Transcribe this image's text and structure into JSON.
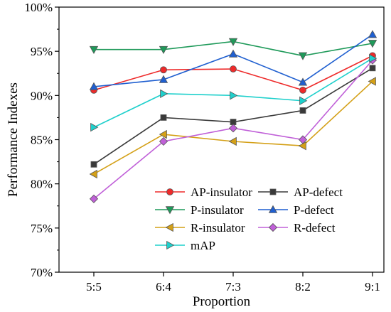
{
  "chart_data": {
    "type": "line",
    "categories": [
      "5:5",
      "6:4",
      "7:3",
      "8:2",
      "9:1"
    ],
    "xlabel": "Proportion",
    "ylabel": "Performance Indexes",
    "ylim": [
      70,
      100
    ],
    "yticks": [
      70,
      75,
      80,
      85,
      90,
      95,
      100
    ],
    "ytick_labels": [
      "70%",
      "75%",
      "80%",
      "85%",
      "90%",
      "95%",
      "100%"
    ],
    "grid": false,
    "legend_position": "bottom-right",
    "series": [
      {
        "name": "AP-insulator",
        "color": "#ee2a2a",
        "marker": "circle",
        "values": [
          90.6,
          92.9,
          93.0,
          90.6,
          94.5
        ]
      },
      {
        "name": "AP-defect",
        "color": "#3a3a3a",
        "marker": "square",
        "values": [
          82.2,
          87.5,
          87.0,
          88.3,
          93.1
        ]
      },
      {
        "name": "P-insulator",
        "color": "#1f9a5a",
        "marker": "triangle-down",
        "values": [
          95.2,
          95.2,
          96.1,
          94.5,
          95.9
        ]
      },
      {
        "name": "P-defect",
        "color": "#1f5fd0",
        "marker": "triangle-up",
        "values": [
          91.0,
          91.8,
          94.7,
          91.5,
          96.9
        ]
      },
      {
        "name": "R-insulator",
        "color": "#d4a017",
        "marker": "triangle-left",
        "values": [
          81.1,
          85.6,
          84.8,
          84.3,
          91.6
        ]
      },
      {
        "name": "R-defect",
        "color": "#c060d8",
        "marker": "diamond",
        "values": [
          78.3,
          84.8,
          86.3,
          85.0,
          94.0
        ]
      },
      {
        "name": "mAP",
        "color": "#1fd0cc",
        "marker": "triangle-right",
        "values": [
          86.4,
          90.2,
          90.0,
          89.4,
          94.2
        ]
      }
    ]
  }
}
